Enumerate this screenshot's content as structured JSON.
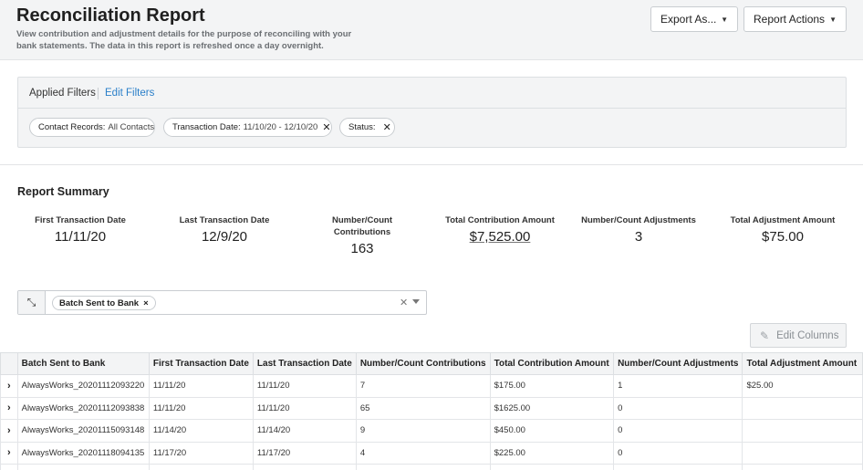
{
  "header": {
    "title": "Reconciliation Report",
    "subtitle": "View contribution and adjustment details for the purpose of reconciling with your bank statements. The data in this report is refreshed once a day overnight.",
    "export_label": "Export As...",
    "actions_label": "Report Actions"
  },
  "filters": {
    "label": "Applied Filters",
    "edit_label": "Edit Filters",
    "chips": [
      {
        "key": "Contact Records:",
        "value": "All Contacts",
        "removable": false
      },
      {
        "key": "Transaction Date:",
        "value": "11/10/20 - 12/10/20",
        "removable": true
      },
      {
        "key": "Status:",
        "value": "",
        "removable": true
      }
    ]
  },
  "summary": {
    "title": "Report Summary",
    "metrics": [
      {
        "label": "First Transaction Date",
        "value": "11/11/20"
      },
      {
        "label": "Last Transaction Date",
        "value": "12/9/20"
      },
      {
        "label": "Number/Count Contributions",
        "value": "163"
      },
      {
        "label": "Total Contribution Amount",
        "value": "$7,525.00"
      },
      {
        "label": "Number/Count Adjustments",
        "value": "3"
      },
      {
        "label": "Total Adjustment Amount",
        "value": "$75.00"
      }
    ]
  },
  "group_by": {
    "tag": "Batch Sent to Bank"
  },
  "edit_columns_label": "Edit Columns",
  "table": {
    "columns": [
      "Batch Sent to Bank",
      "First Transaction Date",
      "Last Transaction Date",
      "Number/Count Contributions",
      "Total Contribution Amount",
      "Number/Count Adjustments",
      "Total Adjustment Amount"
    ],
    "rows": [
      [
        "AlwaysWorks_20201112093220",
        "11/11/20",
        "11/11/20",
        "7",
        "$175.00",
        "1",
        "$25.00"
      ],
      [
        "AlwaysWorks_20201112093838",
        "11/11/20",
        "11/11/20",
        "65",
        "$1625.00",
        "0",
        ""
      ],
      [
        "AlwaysWorks_20201115093148",
        "11/14/20",
        "11/14/20",
        "9",
        "$450.00",
        "0",
        ""
      ],
      [
        "AlwaysWorks_20201118094135",
        "11/17/20",
        "11/17/20",
        "4",
        "$225.00",
        "0",
        ""
      ]
    ]
  }
}
